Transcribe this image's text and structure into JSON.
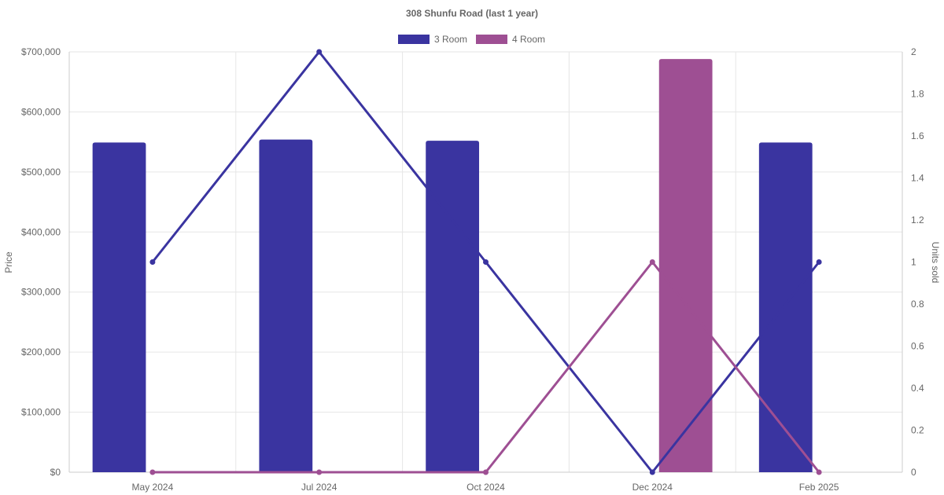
{
  "chart_data": {
    "type": "bar",
    "title": "308 Shunfu Road (last 1 year)",
    "categories": [
      "May 2024",
      "Jul 2024",
      "Oct 2024",
      "Dec 2024",
      "Feb 2025"
    ],
    "legend": {
      "placement": "top-center",
      "entries": [
        "3 Room",
        "4 Room"
      ]
    },
    "grid": true,
    "y_left": {
      "label": "Price",
      "range": [
        0,
        700000
      ],
      "ticks": [
        0,
        100000,
        200000,
        300000,
        400000,
        500000,
        600000,
        700000
      ],
      "tick_labels": [
        "$0",
        "$100,000",
        "$200,000",
        "$300,000",
        "$400,000",
        "$500,000",
        "$600,000",
        "$700,000"
      ]
    },
    "y_right": {
      "label": "Units sold",
      "range": [
        0,
        2
      ],
      "ticks": [
        0,
        0.2,
        0.4,
        0.6,
        0.8,
        1,
        1.2,
        1.4,
        1.6,
        1.8,
        2
      ],
      "tick_labels": [
        "0",
        "0.2",
        "0.4",
        "0.6",
        "0.8",
        "1",
        "1.2",
        "1.4",
        "1.6",
        "1.8",
        "2"
      ]
    },
    "series": [
      {
        "name": "3 Room",
        "type": "bar",
        "axis": "left",
        "color": "#3a34a0",
        "values": [
          549000,
          554000,
          552000,
          null,
          549000
        ]
      },
      {
        "name": "4 Room",
        "type": "bar",
        "axis": "left",
        "color": "#9e4f93",
        "values": [
          null,
          null,
          null,
          688000,
          null
        ]
      },
      {
        "name": "3 Room",
        "type": "line",
        "axis": "right",
        "color": "#3a34a0",
        "values": [
          1,
          2,
          1,
          0,
          1
        ]
      },
      {
        "name": "4 Room",
        "type": "line",
        "axis": "right",
        "color": "#9e4f93",
        "values": [
          0,
          0,
          0,
          1,
          0
        ]
      }
    ]
  }
}
